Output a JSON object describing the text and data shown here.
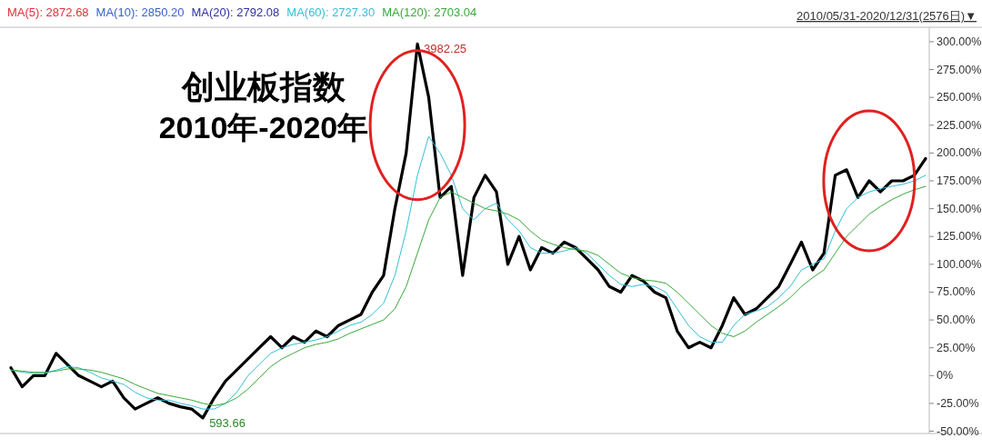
{
  "chart_data": {
    "type": "line",
    "title": "创业板指数",
    "subtitle": "2010年-2020年",
    "annotations": [
      "2010/05/31-2020/12/31(2576日)▼",
      "MA(5): 2872.68",
      "MA(10): 2850.20",
      "MA(20): 2792.08",
      "3982.25",
      "593.66"
    ],
    "categories": [
      null,
      null,
      null,
      null,
      null,
      null,
      null,
      null,
      null,
      null,
      null,
      null,
      null,
      null,
      null,
      null,
      null,
      null,
      null,
      null,
      null,
      null,
      null,
      null,
      null,
      null,
      null,
      null,
      null,
      null,
      null,
      null,
      null,
      null,
      null,
      null,
      null,
      null,
      null,
      null,
      null,
      null,
      null,
      null,
      null,
      null,
      null,
      null,
      null,
      null,
      null,
      null,
      null,
      null,
      null,
      null,
      null,
      null,
      null,
      null,
      null,
      null,
      null,
      null,
      null,
      null,
      null,
      null,
      null,
      null,
      null,
      null,
      null,
      null,
      null,
      null,
      null,
      null,
      null,
      null,
      null,
      null
    ],
    "series": [
      {
        "color": "#000000",
        "values": [
          7,
          -10,
          0,
          0,
          20,
          10,
          0,
          -5,
          -10,
          -5,
          -20,
          -30,
          -25,
          -20,
          -25,
          -28,
          -30,
          -38,
          -20,
          -5,
          5,
          15,
          25,
          35,
          25,
          35,
          30,
          40,
          35,
          45,
          50,
          55,
          75,
          90,
          150,
          200,
          298,
          250,
          160,
          170,
          90,
          160,
          180,
          165,
          100,
          125,
          95,
          115,
          110,
          120,
          115,
          105,
          95,
          80,
          75,
          90,
          85,
          75,
          70,
          40,
          25,
          30,
          25,
          45,
          70,
          55,
          60,
          70,
          80,
          100,
          120,
          95,
          110,
          180,
          185,
          160,
          175,
          165,
          175,
          175,
          180,
          195
        ]
      },
      {
        "name": "MA(60): 2727.30",
        "color": "#33bfd6",
        "values": [
          5,
          3,
          2,
          2,
          5,
          8,
          7,
          3,
          -2,
          -5,
          -8,
          -15,
          -20,
          -22,
          -22,
          -25,
          -27,
          -30,
          -30,
          -25,
          -15,
          0,
          10,
          20,
          25,
          28,
          30,
          32,
          35,
          40,
          45,
          48,
          55,
          65,
          90,
          130,
          180,
          215,
          200,
          180,
          150,
          140,
          150,
          155,
          140,
          130,
          115,
          110,
          110,
          112,
          115,
          110,
          100,
          90,
          82,
          80,
          82,
          80,
          75,
          60,
          45,
          35,
          30,
          30,
          45,
          55,
          58,
          62,
          70,
          80,
          95,
          100,
          105,
          130,
          150,
          160,
          165,
          168,
          170,
          172,
          175,
          180
        ]
      },
      {
        "name": "MA(120): 2703.04",
        "color": "#3aa83a",
        "values": [
          5,
          4,
          3,
          3,
          4,
          6,
          6,
          5,
          3,
          0,
          -3,
          -8,
          -12,
          -16,
          -18,
          -20,
          -22,
          -25,
          -27,
          -25,
          -20,
          -12,
          -2,
          8,
          15,
          20,
          25,
          28,
          30,
          33,
          38,
          42,
          46,
          50,
          60,
          80,
          110,
          140,
          160,
          165,
          160,
          155,
          150,
          148,
          145,
          140,
          130,
          122,
          118,
          115,
          113,
          112,
          108,
          100,
          92,
          88,
          86,
          85,
          83,
          75,
          65,
          55,
          45,
          38,
          35,
          40,
          48,
          55,
          62,
          70,
          80,
          88,
          95,
          110,
          125,
          135,
          145,
          152,
          158,
          163,
          167,
          170
        ]
      }
    ],
    "ylim": [
      -52,
      313
    ],
    "yticks": [
      {
        "value": -50,
        "label": "-50.00%"
      },
      {
        "value": -25,
        "label": "-25.00%"
      },
      {
        "value": 0,
        "label": "0%"
      },
      {
        "value": 25,
        "label": "25.00%"
      },
      {
        "value": 50,
        "label": "50.00%"
      },
      {
        "value": 75,
        "label": "75.00%"
      },
      {
        "value": 100,
        "label": "100.00%"
      },
      {
        "value": 125,
        "label": "125.00%"
      },
      {
        "value": 150,
        "label": "150.00%"
      },
      {
        "value": 175,
        "label": "175.00%"
      },
      {
        "value": 200,
        "label": "200.00%"
      },
      {
        "value": 225,
        "label": "225.00%"
      },
      {
        "value": 250,
        "label": "250.00%"
      },
      {
        "value": 275,
        "label": "275.00%"
      },
      {
        "value": 300,
        "label": "300.00%"
      }
    ],
    "grid": false,
    "legend": "top left",
    "tick_labels": "y"
  }
}
